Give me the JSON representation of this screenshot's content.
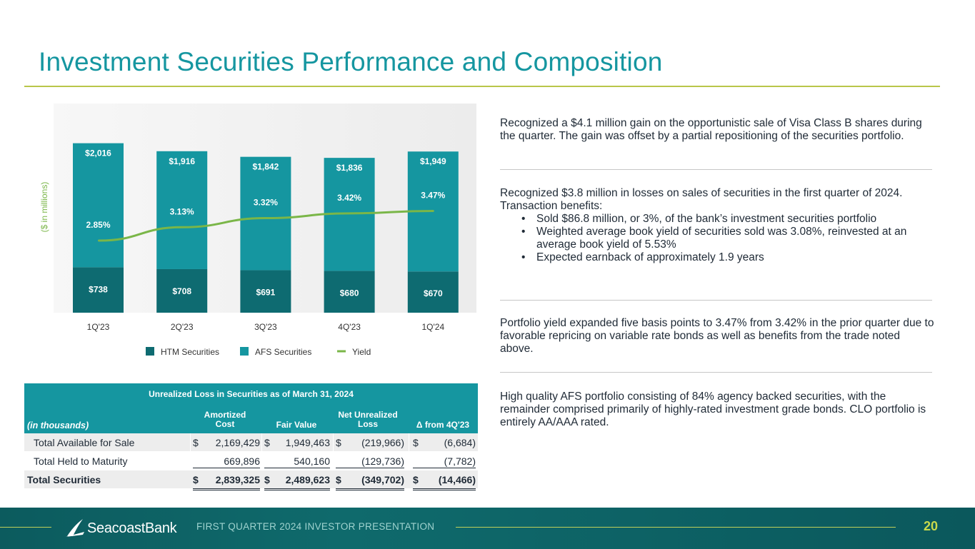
{
  "title": "Investment Securities Performance and Composition",
  "chart_data": {
    "type": "bar",
    "stacked": true,
    "categories": [
      "1Q'23",
      "2Q'23",
      "3Q'23",
      "4Q'23",
      "1Q'24"
    ],
    "series": [
      {
        "name": "HTM Securities",
        "type": "bar",
        "color": "#0e6b71",
        "values": [
          738,
          708,
          691,
          680,
          670
        ],
        "labels": [
          "$738",
          "$708",
          "$691",
          "$680",
          "$670"
        ]
      },
      {
        "name": "AFS Securities",
        "type": "bar",
        "color": "#1596a0",
        "values": [
          2016,
          1916,
          1842,
          1836,
          1949
        ],
        "labels": [
          "$2,016",
          "$1,916",
          "$1,842",
          "$1,836",
          "$1,949"
        ]
      },
      {
        "name": "Yield",
        "type": "line",
        "color": "#7ab648",
        "values": [
          2.85,
          3.13,
          3.32,
          3.42,
          3.47
        ],
        "labels": [
          "2.85%",
          "3.13%",
          "3.32%",
          "3.42%",
          "3.47%"
        ]
      }
    ],
    "ylabel": "($ in millions)",
    "legend_position": "bottom"
  },
  "bullets": {
    "b1": "Recognized a $4.1 million gain on the opportunistic sale of Visa Class B shares during the quarter. The gain was offset by a partial repositioning of the securities portfolio.",
    "b2": "Recognized $3.8 million in losses on sales of securities in the first quarter of 2024. Transaction benefits:",
    "b2_sub": [
      "Sold $86.8 million, or 3%, of the bank’s investment securities portfolio",
      "Weighted average book yield of securities sold was 3.08%, reinvested at an average book yield of 5.53%",
      "Expected earnback of approximately 1.9 years"
    ],
    "b3": "Portfolio yield expanded five basis points to 3.47% from 3.42% in the prior quarter due to favorable repricing on variable rate bonds as well as benefits from the trade noted above.",
    "b4": "High quality AFS portfolio consisting of 84% agency backed securities, with the remainder comprised primarily of highly-rated investment grade bonds. CLO portfolio is entirely AA/AAA rated."
  },
  "table": {
    "caption": "Unrealized Loss in Securities as of March 31, 2024",
    "units": "(in thousands)",
    "col_amortized_l1": "Amortized",
    "col_amortized_l2": "Cost",
    "col_fair": "Fair Value",
    "col_net_l1": "Net Unrealized",
    "col_net_l2": "Loss",
    "col_delta": "Δ from 4Q'23",
    "currency": "$",
    "rows": [
      {
        "label": "Total Available for Sale",
        "amortized": "2,169,429",
        "fair": "1,949,463",
        "net": "(219,966)",
        "delta": "(6,684)"
      },
      {
        "label": "Total Held to Maturity",
        "amortized": "669,896",
        "fair": "540,160",
        "net": "(129,736)",
        "delta": "(7,782)"
      },
      {
        "label": "Total Securities",
        "amortized": "2,839,325",
        "fair": "2,489,623",
        "net": "(349,702)",
        "delta": "(14,466)"
      }
    ]
  },
  "footer": {
    "logo_text": "SeacoastBank",
    "label": "FIRST QUARTER 2024 INVESTOR PRESENTATION",
    "page": "20"
  }
}
